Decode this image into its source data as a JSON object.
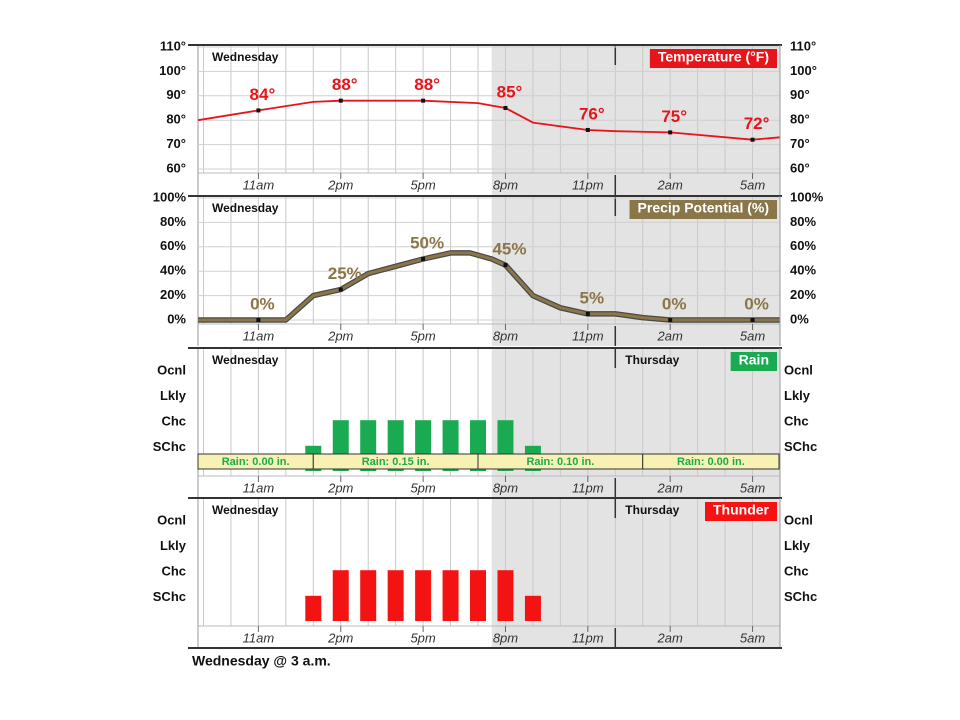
{
  "chart_data": [
    {
      "type": "line",
      "title": "Temperature (°F)",
      "color": "#e8141b",
      "days": [
        "Wednesday"
      ],
      "xlim": [
        8.8,
        30
      ],
      "xticks": [
        {
          "value": 11,
          "label": "11am"
        },
        {
          "value": 14,
          "label": "2pm"
        },
        {
          "value": 17,
          "label": "5pm"
        },
        {
          "value": 20,
          "label": "8pm"
        },
        {
          "value": 23,
          "label": "11pm"
        },
        {
          "value": 26,
          "label": "2am"
        },
        {
          "value": 29,
          "label": "5am"
        }
      ],
      "ylim": [
        60,
        110
      ],
      "yticks": [
        {
          "value": 60,
          "label": "60°"
        },
        {
          "value": 70,
          "label": "70°"
        },
        {
          "value": 80,
          "label": "80°"
        },
        {
          "value": 90,
          "label": "90°"
        },
        {
          "value": 100,
          "label": "100°"
        },
        {
          "value": 110,
          "label": "110°"
        }
      ],
      "grid": true,
      "x": [
        8.8,
        11,
        13,
        14,
        17,
        19,
        20,
        21,
        23,
        24,
        26,
        29,
        30
      ],
      "values": [
        80,
        84,
        87.5,
        88,
        88,
        87,
        85,
        79,
        76,
        75.5,
        75,
        72,
        73
      ],
      "value_labels": [
        null,
        "84°",
        null,
        "88°",
        "88°",
        null,
        "85°",
        null,
        "76°",
        null,
        "75°",
        "72°",
        null
      ]
    },
    {
      "type": "line",
      "title": "Precip Potential (%)",
      "color": "#8a7648",
      "days": [
        "Wednesday"
      ],
      "xlim": [
        8.8,
        30
      ],
      "xticks": [
        {
          "value": 11,
          "label": "11am"
        },
        {
          "value": 14,
          "label": "2pm"
        },
        {
          "value": 17,
          "label": "5pm"
        },
        {
          "value": 20,
          "label": "8pm"
        },
        {
          "value": 23,
          "label": "11pm"
        },
        {
          "value": 26,
          "label": "2am"
        },
        {
          "value": 29,
          "label": "5am"
        }
      ],
      "ylim": [
        0,
        100
      ],
      "yticks": [
        {
          "value": 0,
          "label": "0%"
        },
        {
          "value": 20,
          "label": "20%"
        },
        {
          "value": 40,
          "label": "40%"
        },
        {
          "value": 60,
          "label": "60%"
        },
        {
          "value": 80,
          "label": "80%"
        },
        {
          "value": 100,
          "label": "100%"
        }
      ],
      "grid": true,
      "x": [
        8.8,
        11,
        12,
        13,
        14,
        15,
        16,
        17,
        18,
        18.7,
        19.5,
        20,
        21,
        22,
        23,
        24,
        25,
        26,
        29,
        30
      ],
      "values": [
        0,
        0,
        0,
        20,
        25,
        38,
        44,
        50,
        55,
        55,
        50,
        45,
        20,
        10,
        5,
        5,
        2,
        0,
        0,
        0
      ],
      "value_labels": [
        null,
        "0%",
        null,
        null,
        "25%",
        null,
        null,
        "50%",
        null,
        null,
        null,
        "45%",
        null,
        null,
        "5%",
        null,
        null,
        "0%",
        "0%",
        null
      ]
    },
    {
      "type": "bar",
      "title": "Rain",
      "color": "#1aab52",
      "days": [
        "Wednesday",
        "Thursday"
      ],
      "xlim": [
        8.8,
        30
      ],
      "xticks": [
        {
          "value": 11,
          "label": "11am"
        },
        {
          "value": 14,
          "label": "2pm"
        },
        {
          "value": 17,
          "label": "5pm"
        },
        {
          "value": 20,
          "label": "8pm"
        },
        {
          "value": 23,
          "label": "11pm"
        },
        {
          "value": 26,
          "label": "2am"
        },
        {
          "value": 29,
          "label": "5am"
        }
      ],
      "levels": [
        "Ocnl",
        "Lkly",
        "Chc",
        "SChc"
      ],
      "x": [
        13,
        14,
        15,
        16,
        17,
        18,
        19,
        20,
        21
      ],
      "values": [
        "SChc",
        "Chc",
        "Chc",
        "Chc",
        "Chc",
        "Chc",
        "Chc",
        "Chc",
        "SChc"
      ],
      "totals": [
        "Rain: 0.00 in.",
        "Rain: 0.15 in.",
        "Rain: 0.10 in.",
        "Rain: 0.00 in."
      ]
    },
    {
      "type": "bar",
      "title": "Thunder",
      "color": "#f41313",
      "days": [
        "Wednesday",
        "Thursday"
      ],
      "xlim": [
        8.8,
        30
      ],
      "xticks": [
        {
          "value": 11,
          "label": "11am"
        },
        {
          "value": 14,
          "label": "2pm"
        },
        {
          "value": 17,
          "label": "5pm"
        },
        {
          "value": 20,
          "label": "8pm"
        },
        {
          "value": 23,
          "label": "11pm"
        },
        {
          "value": 26,
          "label": "2am"
        },
        {
          "value": 29,
          "label": "5am"
        }
      ],
      "levels": [
        "Ocnl",
        "Lkly",
        "Chc",
        "SChc"
      ],
      "x": [
        13,
        14,
        15,
        16,
        17,
        18,
        19,
        20,
        21
      ],
      "values": [
        "SChc",
        "Chc",
        "Chc",
        "Chc",
        "Chc",
        "Chc",
        "Chc",
        "Chc",
        "SChc"
      ]
    }
  ],
  "footer": "Wednesday @ 3 a.m."
}
